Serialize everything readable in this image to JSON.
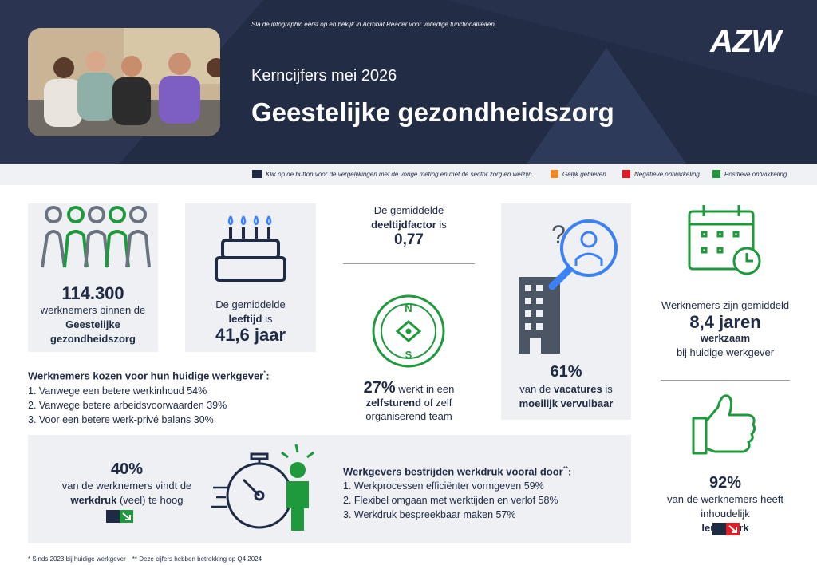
{
  "header": {
    "note": "Sla de infographic eerst op en bekijk in Acrobat Reader voor volledige functionaliteiten",
    "logo": "AZW",
    "subtitle": "Kerncijfers mei 2026",
    "title": "Geestelijke gezondheidszorg"
  },
  "legend": {
    "instruction": "Klik op de button voor de vergelijkingen met de vorige meting en met de sector zorg en welzijn.",
    "items": [
      {
        "label": "Gelijk gebleven",
        "color": "#f08a24"
      },
      {
        "label": "Negatieve ontwikkeling",
        "color": "#e31b23"
      },
      {
        "label": "Positieve ontwikkeling",
        "color": "#1e9a3c"
      }
    ]
  },
  "stats": {
    "employees": {
      "value": "114.300",
      "text": "werknemers binnen de",
      "bold": "Geestelijke gezondheidszorg"
    },
    "age": {
      "intro": "De gemiddelde",
      "bold": "leeftijd",
      "rest": "is",
      "value": "41,6 jaar"
    },
    "part_time": {
      "intro": "De gemiddelde",
      "bold": "deeltijdfactor",
      "rest": "is",
      "value": "0,77"
    },
    "self_steering": {
      "value": "27%",
      "text": "werkt in een",
      "bold": "zelfsturend",
      "rest": "of zelf organiserend team"
    },
    "vacancies": {
      "value": "61%",
      "text": "van de",
      "bold": "vacatures",
      "rest": "is",
      "bold2": "moeilijk vervulbaar"
    },
    "tenure": {
      "intro": "Werknemers zijn gemiddeld",
      "value": "8,4 jaren",
      "bold": "werkzaam",
      "rest": "bij huidige werkgever"
    },
    "workload": {
      "value": "40%",
      "text": "van de werknemers vindt de",
      "bold": "werkdruk",
      "rest": "(veel) te hoog"
    },
    "enjoyment": {
      "value": "92%",
      "text": "van de werknemers heeft inhoudelijk",
      "bold": "leuk werk"
    }
  },
  "reasons": {
    "title": "Werknemers kozen voor hun huidige werkgever",
    "marker": "*",
    "colon": ":",
    "items": [
      "1. Vanwege een betere werkinhoud 54%",
      "2. Vanwege betere arbeidsvoorwaarden 39%",
      "3. Voor een betere werk-privé balans 30%"
    ]
  },
  "measures": {
    "title": "Werkgevers bestrijden werkdruk vooral door",
    "marker": "**",
    "colon": ":",
    "items": [
      "1. Werkprocessen efficiënter vormgeven 59%",
      "2. Flexibel omgaan met werktijden en verlof 58%",
      "3. Werkdruk bespreekbaar maken 57%"
    ]
  },
  "footer": {
    "notes": [
      "* Sinds 2023 bij huidige werkgever",
      "** Deze cijfers hebben betrekking op Q4 2024"
    ]
  }
}
